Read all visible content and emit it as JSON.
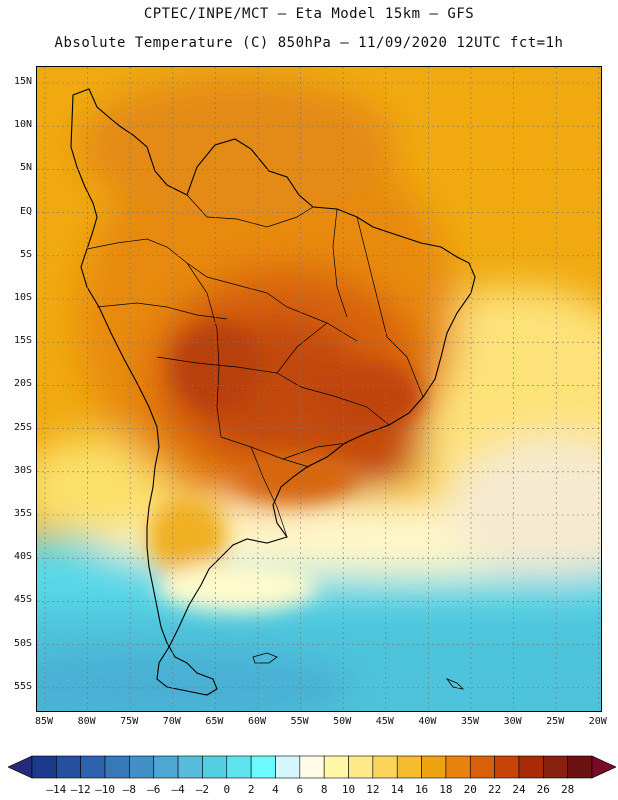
{
  "header": {
    "line1": "CPTEC/INPE/MCT –  Eta Model 15km – GFS",
    "line2": "Absolute Temperature (C) 850hPa – 11/09/2020 12UTC fct=1h"
  },
  "map": {
    "lat_labels": [
      "15N",
      "10N",
      "5N",
      "EQ",
      "5S",
      "10S",
      "15S",
      "20S",
      "25S",
      "30S",
      "35S",
      "40S",
      "45S",
      "50S",
      "55S"
    ],
    "lon_labels": [
      "85W",
      "80W",
      "75W",
      "70W",
      "65W",
      "60W",
      "55W",
      "50W",
      "45W",
      "40W",
      "35W",
      "30W",
      "25W",
      "20W"
    ],
    "lon_range": [
      -85,
      -20
    ],
    "lat_range": [
      15,
      -55
    ]
  },
  "legend": {
    "labels": [
      "-14",
      "-12",
      "-10",
      "-8",
      "-6",
      "-4",
      "-2",
      "0",
      "2",
      "4",
      "6",
      "8",
      "10",
      "12",
      "14",
      "16",
      "18",
      "20",
      "22",
      "24",
      "26",
      "28"
    ],
    "colors": [
      "#1c3a8c",
      "#25509e",
      "#2d62ae",
      "#3778b8",
      "#4390c6",
      "#4ea6d2",
      "#58bcdc",
      "#52cfe2",
      "#5ee4ee",
      "#6cfafc",
      "#d4f6fc",
      "#fffbe6",
      "#fff7a8",
      "#fde98a",
      "#fbd55a",
      "#f6bc30",
      "#eea312",
      "#e8840e",
      "#d9600a",
      "#c84406",
      "#a82a06",
      "#882010",
      "#6a1212"
    ],
    "colors_note": "color per interval"
  }
}
